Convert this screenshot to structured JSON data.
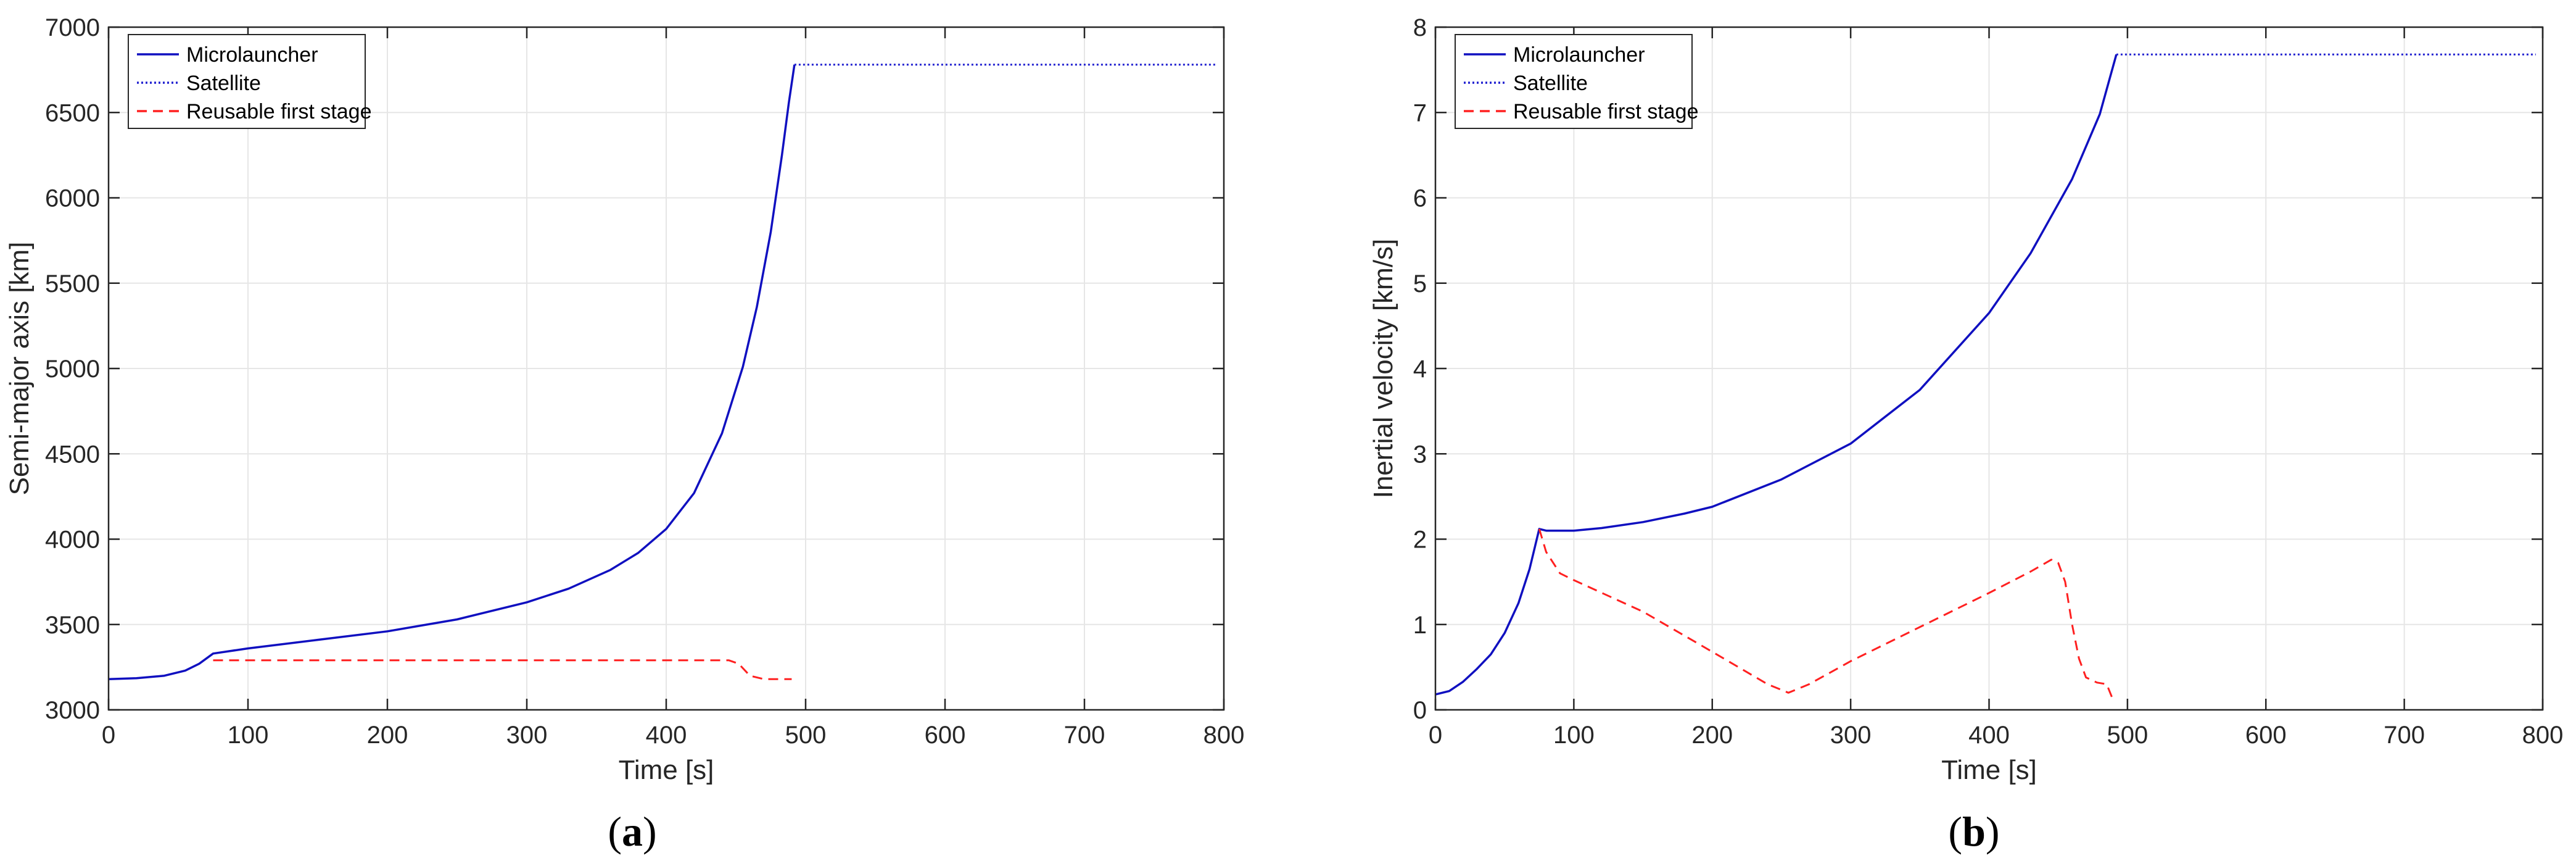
{
  "chart_data": [
    {
      "type": "line",
      "panel_label": {
        "open": "(",
        "letter": "a",
        "close": ")"
      },
      "xlabel": "Time [s]",
      "ylabel": "Semi-major axis [km]",
      "xlim": [
        0,
        800
      ],
      "ylim": [
        3000,
        7000
      ],
      "xticks": [
        0,
        100,
        200,
        300,
        400,
        500,
        600,
        700,
        800
      ],
      "yticks": [
        3000,
        3500,
        4000,
        4500,
        5000,
        5500,
        6000,
        6500,
        7000
      ],
      "grid": true,
      "legend_position": "top-left",
      "series": [
        {
          "name": "Microlauncher",
          "color": "#1010c0",
          "style": "solid",
          "x": [
            0,
            20,
            40,
            55,
            65,
            75,
            100,
            150,
            200,
            250,
            300,
            330,
            360,
            380,
            400,
            420,
            440,
            455,
            465,
            475,
            483,
            488,
            492
          ],
          "y": [
            3180,
            3185,
            3200,
            3230,
            3270,
            3330,
            3360,
            3410,
            3460,
            3530,
            3630,
            3710,
            3820,
            3920,
            4060,
            4270,
            4620,
            5010,
            5360,
            5800,
            6250,
            6560,
            6780
          ]
        },
        {
          "name": "Satellite",
          "color": "#2020d0",
          "style": "dotted",
          "x": [
            492,
            795
          ],
          "y": [
            6780,
            6780
          ]
        },
        {
          "name": "Reusable first stage",
          "color": "#ff2020",
          "style": "dashed",
          "x": [
            75,
            100,
            200,
            300,
            400,
            445,
            452,
            460,
            470,
            490
          ],
          "y": [
            3290,
            3290,
            3290,
            3290,
            3290,
            3290,
            3270,
            3200,
            3180,
            3180
          ]
        }
      ]
    },
    {
      "type": "line",
      "panel_label": {
        "open": "(",
        "letter": "b",
        "close": ")"
      },
      "xlabel": "Time [s]",
      "ylabel": "Inertial velocity [km/s]",
      "xlim": [
        0,
        800
      ],
      "ylim": [
        0,
        8
      ],
      "xticks": [
        0,
        100,
        200,
        300,
        400,
        500,
        600,
        700,
        800
      ],
      "yticks": [
        0,
        1,
        2,
        3,
        4,
        5,
        6,
        7,
        8
      ],
      "grid": true,
      "legend_position": "top-left",
      "series": [
        {
          "name": "Microlauncher",
          "color": "#1010c0",
          "style": "solid",
          "x": [
            0,
            10,
            20,
            30,
            40,
            50,
            60,
            68,
            75,
            80,
            100,
            120,
            150,
            180,
            200,
            250,
            300,
            350,
            400,
            430,
            460,
            480,
            492
          ],
          "y": [
            0.18,
            0.22,
            0.33,
            0.48,
            0.65,
            0.9,
            1.25,
            1.65,
            2.12,
            2.1,
            2.1,
            2.13,
            2.2,
            2.3,
            2.38,
            2.7,
            3.12,
            3.75,
            4.65,
            5.35,
            6.22,
            6.98,
            7.68
          ]
        },
        {
          "name": "Satellite",
          "color": "#2020d0",
          "style": "dotted",
          "x": [
            492,
            795
          ],
          "y": [
            7.68,
            7.68
          ]
        },
        {
          "name": "Reusable first stage",
          "color": "#ff2020",
          "style": "dashed",
          "x": [
            75,
            80,
            90,
            100,
            150,
            200,
            240,
            255,
            270,
            300,
            350,
            400,
            430,
            445,
            450,
            455,
            460,
            465,
            470,
            478,
            485,
            490
          ],
          "y": [
            2.12,
            1.85,
            1.6,
            1.52,
            1.15,
            0.68,
            0.3,
            0.2,
            0.3,
            0.57,
            0.97,
            1.37,
            1.62,
            1.76,
            1.72,
            1.5,
            1.0,
            0.6,
            0.38,
            0.32,
            0.3,
            0.1
          ]
        }
      ]
    }
  ]
}
